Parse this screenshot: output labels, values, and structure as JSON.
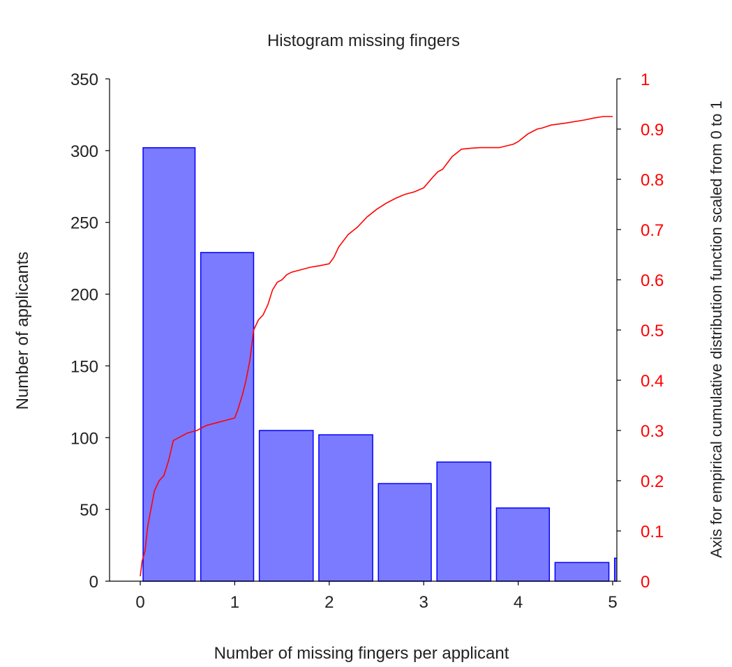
{
  "chart_data": {
    "type": "bar",
    "title": "Histogram missing fingers",
    "xlabel": "Number of missing fingers per applicant",
    "ylabel": "Number of applicants",
    "ylabel_right": "Axis for empirical cumulative distribution function scaled from 0 to 1",
    "xlim": [
      0,
      5
    ],
    "ylim": [
      0,
      350
    ],
    "ylim_right": [
      0,
      1
    ],
    "x_ticks": [
      "0",
      "1",
      "2",
      "3",
      "4",
      "5"
    ],
    "y_ticks": [
      "0",
      "50",
      "100",
      "150",
      "200",
      "250",
      "300",
      "350"
    ],
    "y_right_ticks": [
      "0",
      "0.1",
      "0.2",
      "0.3",
      "0.4",
      "0.5",
      "0.6",
      "0.7",
      "0.8",
      "0.9",
      "1"
    ],
    "bar_color": "#7b7bff",
    "bar_edge_color": "#0000ff",
    "ecdf_color": "#ff0000",
    "bars": [
      {
        "x0": 0.03,
        "x1": 0.58,
        "value": 302
      },
      {
        "x0": 0.64,
        "x1": 1.2,
        "value": 229
      },
      {
        "x0": 1.26,
        "x1": 1.83,
        "value": 105
      },
      {
        "x0": 1.89,
        "x1": 2.46,
        "value": 102
      },
      {
        "x0": 2.52,
        "x1": 3.08,
        "value": 68
      },
      {
        "x0": 3.14,
        "x1": 3.71,
        "value": 83
      },
      {
        "x0": 3.77,
        "x1": 4.33,
        "value": 51
      },
      {
        "x0": 4.39,
        "x1": 4.96,
        "value": 13
      },
      {
        "x0": 5.02,
        "x1": 5.58,
        "value": 16
      }
    ],
    "series": [
      {
        "type": "line",
        "axis": "right",
        "x": [
          0.0,
          0.02,
          0.05,
          0.08,
          0.1,
          0.15,
          0.2,
          0.25,
          0.3,
          0.35,
          0.4,
          0.45,
          0.5,
          0.6,
          0.7,
          0.8,
          0.9,
          1.0,
          1.03,
          1.08,
          1.12,
          1.16,
          1.2,
          1.25,
          1.3,
          1.35,
          1.4,
          1.45,
          1.5,
          1.55,
          1.6,
          1.7,
          1.8,
          1.9,
          2.0,
          2.05,
          2.1,
          2.2,
          2.3,
          2.4,
          2.5,
          2.6,
          2.7,
          2.8,
          2.9,
          3.0,
          3.1,
          3.15,
          3.2,
          3.3,
          3.4,
          3.5,
          3.6,
          3.8,
          3.95,
          4.0,
          4.1,
          4.2,
          4.25,
          4.35,
          4.5,
          4.7,
          4.8,
          4.9,
          5.0
        ],
        "values": [
          0.01,
          0.04,
          0.06,
          0.11,
          0.13,
          0.18,
          0.2,
          0.21,
          0.24,
          0.28,
          0.285,
          0.29,
          0.295,
          0.3,
          0.31,
          0.315,
          0.32,
          0.325,
          0.34,
          0.37,
          0.4,
          0.44,
          0.5,
          0.52,
          0.53,
          0.55,
          0.58,
          0.595,
          0.6,
          0.61,
          0.615,
          0.62,
          0.625,
          0.628,
          0.632,
          0.645,
          0.665,
          0.69,
          0.705,
          0.725,
          0.74,
          0.752,
          0.762,
          0.77,
          0.775,
          0.783,
          0.805,
          0.815,
          0.82,
          0.845,
          0.86,
          0.862,
          0.863,
          0.863,
          0.87,
          0.875,
          0.89,
          0.9,
          0.902,
          0.908,
          0.912,
          0.918,
          0.922,
          0.925,
          0.925
        ]
      }
    ],
    "legend": "none",
    "grid": false
  }
}
